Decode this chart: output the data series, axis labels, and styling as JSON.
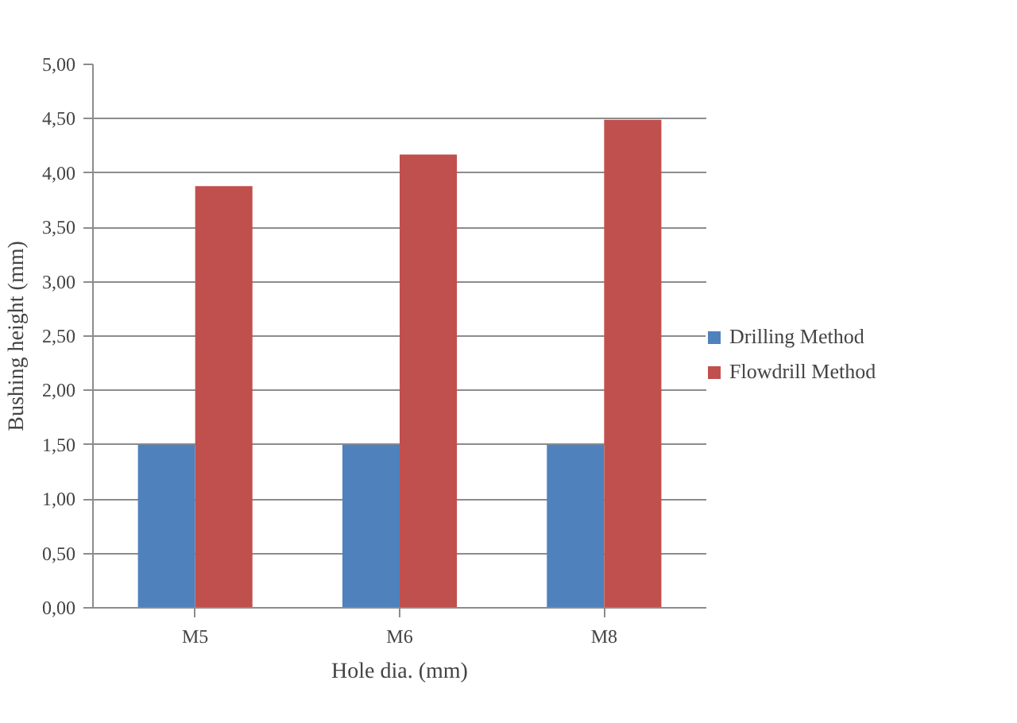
{
  "chart_data": {
    "type": "bar",
    "xlabel": "Hole dia. (mm)",
    "ylabel": "Bushing height (mm)",
    "categories": [
      "M5",
      "M6",
      "M8"
    ],
    "series": [
      {
        "name": "Drilling Method",
        "color": "#4f81bd",
        "values": [
          1.5,
          1.5,
          1.5
        ]
      },
      {
        "name": "Flowdrill Method",
        "color": "#c0504d",
        "values": [
          3.88,
          4.17,
          4.49
        ]
      }
    ],
    "ylim": [
      0,
      5
    ],
    "yticks": [
      {
        "value": 0,
        "label": "0,00"
      },
      {
        "value": 0.5,
        "label": "0,50"
      },
      {
        "value": 1,
        "label": "1,00"
      },
      {
        "value": 1.5,
        "label": "1,50"
      },
      {
        "value": 2,
        "label": "2,00"
      },
      {
        "value": 2.5,
        "label": "2,50"
      },
      {
        "value": 3,
        "label": "3,00"
      },
      {
        "value": 3.5,
        "label": "3,50"
      },
      {
        "value": 4,
        "label": "4,00"
      },
      {
        "value": 4.5,
        "label": "4,50"
      },
      {
        "value": 5,
        "label": "5,00"
      }
    ],
    "grid": "y",
    "legend": "right"
  }
}
